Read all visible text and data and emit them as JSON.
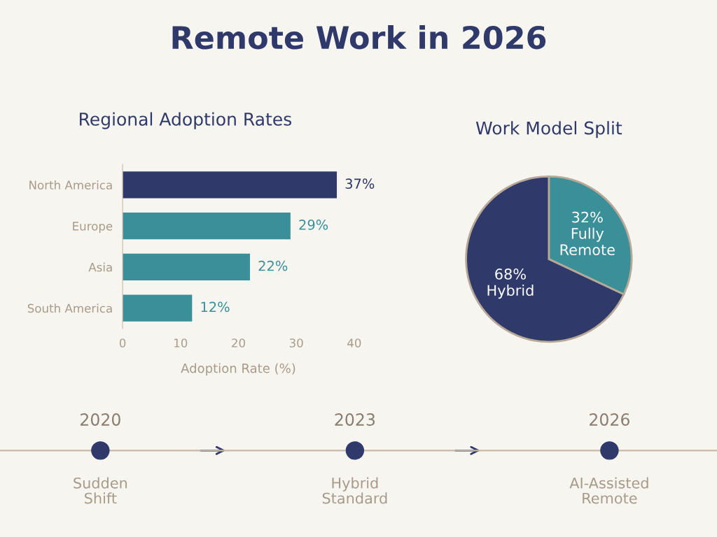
{
  "chart_data": [
    {
      "type": "other",
      "title": "Remote Work in 2026",
      "annotations": [
        "2020",
        "Sudden\nShift",
        "2023",
        "Hybrid\nStandard",
        "2026",
        "AI-Assisted\nRemote"
      ]
    },
    {
      "type": "bar",
      "orientation": "horizontal",
      "title": "Regional Adoption Rates",
      "xlabel": "Adoption Rate (%)",
      "categories": [
        "North America",
        "Europe",
        "Asia",
        "South America"
      ],
      "values": [
        37,
        29,
        22,
        12
      ],
      "colors": [
        "#2f3a6b",
        "#3a8f99",
        "#3a8f99",
        "#3a8f99"
      ],
      "value_labels": [
        "37%",
        "29%",
        "22%",
        "12%"
      ],
      "xlim": [
        0,
        40
      ],
      "xticks": [
        0,
        10,
        20,
        30,
        40
      ],
      "grid": false
    },
    {
      "type": "pie",
      "title": "Work Model Split",
      "categories": [
        "Fully\nRemote",
        "Hybrid"
      ],
      "values": [
        32,
        68
      ],
      "colors": [
        "#3a8f99",
        "#2f3a6b"
      ],
      "value_labels": [
        "32%",
        "68%"
      ]
    }
  ]
}
